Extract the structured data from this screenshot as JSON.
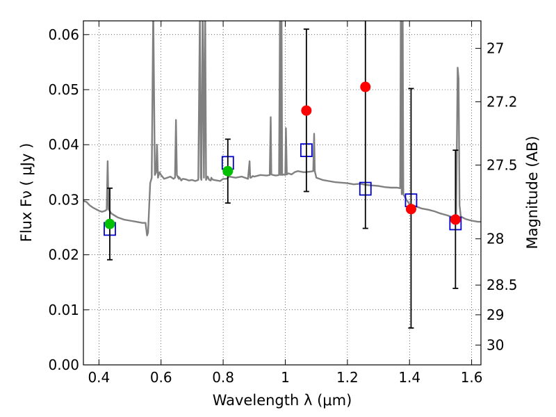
{
  "chart_data": {
    "type": "scatter",
    "title": "",
    "xlabel": "Wavelength  λ (μm)",
    "ylabel": "Flux  Fν  ( μJy )",
    "y2label": "Magnitude (AB)",
    "xlim": [
      0.35,
      1.63
    ],
    "ylim": [
      0.0,
      0.0625
    ],
    "grid": true,
    "grid_style": "dotted",
    "x_ticks": [
      0.4,
      0.6,
      0.8,
      1.0,
      1.2,
      1.4,
      1.6
    ],
    "x_tick_labels": [
      "0.4",
      "0.6",
      "0.8",
      "1",
      "1.2",
      "1.4",
      "1.6"
    ],
    "y_ticks": [
      0.0,
      0.01,
      0.02,
      0.03,
      0.04,
      0.05,
      0.06
    ],
    "y_tick_labels": [
      "0.00",
      "0.01",
      "0.02",
      "0.03",
      "0.04",
      "0.05",
      "0.06"
    ],
    "y2_ticks": [
      {
        "label": "27",
        "flux": 0.0575
      },
      {
        "label": "27.2",
        "flux": 0.0478
      },
      {
        "label": "27.5",
        "flux": 0.0363
      },
      {
        "label": "28",
        "flux": 0.0229
      },
      {
        "label": "28.5",
        "flux": 0.0145
      },
      {
        "label": "29",
        "flux": 0.0091
      },
      {
        "label": "30",
        "flux": 0.0036
      }
    ],
    "series": [
      {
        "kind": "spectrum",
        "color": "#808080",
        "x": [
          0.35,
          0.36,
          0.37,
          0.38,
          0.39,
          0.4,
          0.41,
          0.42,
          0.425,
          0.428,
          0.431,
          0.44,
          0.46,
          0.48,
          0.5,
          0.52,
          0.54,
          0.55,
          0.555,
          0.558,
          0.565,
          0.57,
          0.575,
          0.58,
          0.584,
          0.587,
          0.59,
          0.595,
          0.6,
          0.61,
          0.62,
          0.63,
          0.64,
          0.645,
          0.648,
          0.651,
          0.655,
          0.656,
          0.657,
          0.66,
          0.665,
          0.67,
          0.68,
          0.69,
          0.7,
          0.71,
          0.72,
          0.725,
          0.728,
          0.73,
          0.734,
          0.738,
          0.742,
          0.745,
          0.748,
          0.75,
          0.755,
          0.76,
          0.762,
          0.765,
          0.77,
          0.78,
          0.79,
          0.8,
          0.81,
          0.82,
          0.83,
          0.84,
          0.86,
          0.88,
          0.885,
          0.887,
          0.89,
          0.895,
          0.9,
          0.92,
          0.94,
          0.95,
          0.953,
          0.955,
          0.96,
          0.97,
          0.98,
          0.983,
          0.985,
          0.988,
          0.99,
          0.995,
          1.0,
          1.002,
          1.005,
          1.01,
          1.02,
          1.03,
          1.04,
          1.06,
          1.08,
          1.09,
          1.093,
          1.095,
          1.1,
          1.11,
          1.12,
          1.14,
          1.16,
          1.18,
          1.2,
          1.22,
          1.24,
          1.26,
          1.28,
          1.3,
          1.32,
          1.34,
          1.36,
          1.37,
          1.372,
          1.375,
          1.378,
          1.38,
          1.39,
          1.4,
          1.42,
          1.44,
          1.46,
          1.48,
          1.5,
          1.52,
          1.54,
          1.55,
          1.555,
          1.558,
          1.561,
          1.565,
          1.57,
          1.58,
          1.6,
          1.62,
          1.63
        ],
        "y": [
          0.0298,
          0.0296,
          0.029,
          0.0286,
          0.0283,
          0.028,
          0.0278,
          0.028,
          0.0282,
          0.037,
          0.0283,
          0.0275,
          0.0268,
          0.0264,
          0.0262,
          0.026,
          0.0258,
          0.0258,
          0.0235,
          0.024,
          0.033,
          0.034,
          0.065,
          0.0345,
          0.035,
          0.04,
          0.034,
          0.035,
          0.0345,
          0.0338,
          0.034,
          0.0342,
          0.0338,
          0.034,
          0.0445,
          0.0345,
          0.034,
          0.0342,
          0.0338,
          0.034,
          0.0335,
          0.0338,
          0.0337,
          0.0335,
          0.0336,
          0.0334,
          0.0336,
          0.064,
          0.034,
          0.0336,
          0.065,
          0.034,
          0.065,
          0.0336,
          0.034,
          0.0342,
          0.0336,
          0.0335,
          0.034,
          0.0337,
          0.0336,
          0.0335,
          0.0334,
          0.0338,
          0.0338,
          0.0342,
          0.0341,
          0.034,
          0.0342,
          0.0338,
          0.037,
          0.034,
          0.034,
          0.0343,
          0.0342,
          0.0345,
          0.0344,
          0.0345,
          0.045,
          0.0346,
          0.0345,
          0.0344,
          0.0345,
          0.065,
          0.0345,
          0.065,
          0.0345,
          0.0346,
          0.0345,
          0.043,
          0.0346,
          0.0348,
          0.0346,
          0.035,
          0.0352,
          0.035,
          0.0351,
          0.0352,
          0.042,
          0.0352,
          0.034,
          0.0338,
          0.0336,
          0.0334,
          0.0332,
          0.0331,
          0.033,
          0.0328,
          0.0329,
          0.0327,
          0.0326,
          0.0325,
          0.0323,
          0.0322,
          0.0322,
          0.0321,
          0.065,
          0.031,
          0.065,
          0.031,
          0.03,
          0.0292,
          0.0288,
          0.0284,
          0.0282,
          0.0279,
          0.0275,
          0.0272,
          0.0268,
          0.027,
          0.054,
          0.052,
          0.029,
          0.027,
          0.0268,
          0.0265,
          0.0262,
          0.026,
          0.026
        ]
      },
      {
        "kind": "model_photometry",
        "marker": "open-square",
        "color": "#0000cc",
        "x": [
          0.435,
          0.815,
          1.068,
          1.258,
          1.405,
          1.548
        ],
        "y": [
          0.0247,
          0.0367,
          0.039,
          0.032,
          0.0299,
          0.0257
        ]
      },
      {
        "kind": "observed_detection",
        "marker": "filled-circle",
        "color": "#00c000",
        "x": [
          0.435,
          0.815
        ],
        "y": [
          0.0256,
          0.0352
        ],
        "yerr": [
          0.0065,
          0.0058
        ]
      },
      {
        "kind": "observed_upper",
        "marker": "filled-circle",
        "color": "#ff0000",
        "x": [
          1.068,
          1.258,
          1.405,
          1.548
        ],
        "y": [
          0.0462,
          0.0505,
          0.0283,
          0.0264
        ],
        "err_low": [
          0.0315,
          0.0248,
          0.0067,
          0.0139
        ],
        "err_high": [
          0.061,
          0.064,
          0.0502,
          0.039
        ]
      }
    ]
  }
}
